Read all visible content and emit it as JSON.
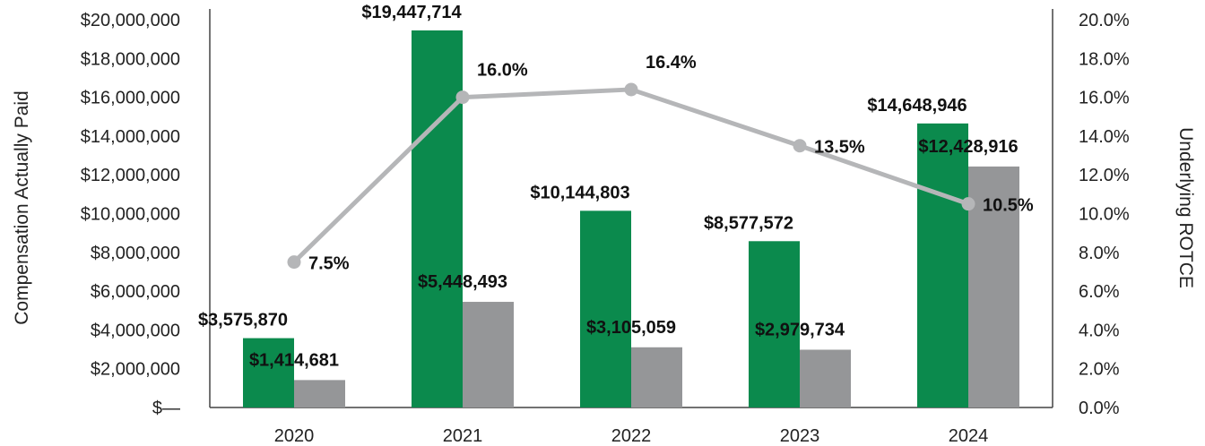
{
  "chart_data": {
    "type": "bar",
    "categories": [
      "2020",
      "2021",
      "2022",
      "2023",
      "2024"
    ],
    "series": [
      {
        "name": "Compensation Actually Paid (series 1)",
        "color": "#0b8a4d",
        "axis": "left",
        "values": [
          3575870,
          19447714,
          10144803,
          8577572,
          14648946
        ],
        "labels": [
          "$3,575,870",
          "$19,447,714",
          "$10,144,803",
          "$8,577,572",
          "$14,648,946"
        ]
      },
      {
        "name": "Compensation Actually Paid (series 2)",
        "color": "#959698",
        "axis": "left",
        "values": [
          1414681,
          5448493,
          3105059,
          2979734,
          12428916
        ],
        "labels": [
          "$1,414,681",
          "$5,448,493",
          "$3,105,059",
          "$2,979,734",
          "$12,428,916"
        ]
      }
    ],
    "line": {
      "name": "Underlying ROTCE",
      "color": "#b5b6b8",
      "axis": "right",
      "values": [
        7.5,
        16.0,
        16.4,
        13.5,
        10.5
      ],
      "labels": [
        "7.5%",
        "16.0%",
        "16.4%",
        "13.5%",
        "10.5%"
      ]
    },
    "ylabel": "Compensation Actually Paid",
    "y2label": "Underlying ROTCE",
    "ylim": [
      0,
      20000000
    ],
    "y2lim": [
      0,
      20
    ],
    "left_ticks": [
      {
        "value": 0,
        "label": "$—"
      },
      {
        "value": 2000000,
        "label": "$2,000,000"
      },
      {
        "value": 4000000,
        "label": "$4,000,000"
      },
      {
        "value": 6000000,
        "label": "$6,000,000"
      },
      {
        "value": 8000000,
        "label": "$8,000,000"
      },
      {
        "value": 10000000,
        "label": "$10,000,000"
      },
      {
        "value": 12000000,
        "label": "$12,000,000"
      },
      {
        "value": 14000000,
        "label": "$14,000,000"
      },
      {
        "value": 16000000,
        "label": "$16,000,000"
      },
      {
        "value": 18000000,
        "label": "$18,000,000"
      },
      {
        "value": 20000000,
        "label": "$20,000,000"
      }
    ],
    "right_ticks": [
      {
        "value": 0,
        "label": "0.0%"
      },
      {
        "value": 2,
        "label": "2.0%"
      },
      {
        "value": 4,
        "label": "4.0%"
      },
      {
        "value": 6,
        "label": "6.0%"
      },
      {
        "value": 8,
        "label": "8.0%"
      },
      {
        "value": 10,
        "label": "10.0%"
      },
      {
        "value": 12,
        "label": "12.0%"
      },
      {
        "value": 14,
        "label": "14.0%"
      },
      {
        "value": 16,
        "label": "16.0%"
      },
      {
        "value": 18,
        "label": "18.0%"
      },
      {
        "value": 20,
        "label": "20.0%"
      }
    ],
    "grid": false
  }
}
